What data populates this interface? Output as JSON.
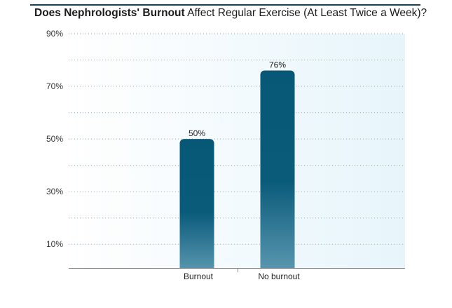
{
  "title": {
    "bold_part": "Does Nephrologists' Burnout",
    "rest_part": " Affect Regular Exercise (At Least Twice a Week)?"
  },
  "chart_data": {
    "type": "bar",
    "title": "Does Nephrologists' Burnout Affect Regular Exercise (At Least Twice a Week)?",
    "categories": [
      "Burnout",
      "No burnout"
    ],
    "values": [
      50,
      76
    ],
    "value_labels": [
      "50%",
      "76%"
    ],
    "ylim": [
      1,
      90
    ],
    "yticks": [
      10,
      30,
      50,
      70,
      90
    ],
    "ytick_labels": [
      "10%",
      "30%",
      "50%",
      "70%",
      "90%"
    ],
    "minor_gridlines": [
      20,
      40,
      60,
      80
    ],
    "xlabel": "",
    "ylabel": "",
    "grid": true,
    "colors": {
      "bar_top": "#075777",
      "bar_bottom": "#5b98b0",
      "plot_bg_left": "#ffffff",
      "plot_bg_right": "#e7f5fb",
      "grid": "#9aa6ad",
      "axis": "#888888"
    }
  }
}
